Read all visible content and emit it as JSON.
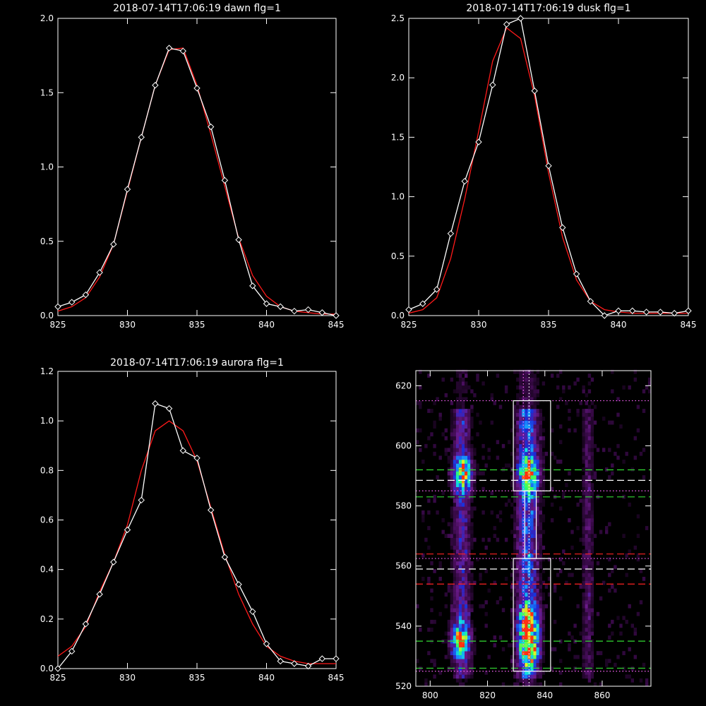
{
  "chart_data": [
    {
      "type": "line",
      "title": "2018-07-14T17:06:19 dawn flg=1",
      "xlim": [
        825,
        845
      ],
      "ylim": [
        0,
        2.0
      ],
      "xticks": [
        825,
        830,
        835,
        840,
        845
      ],
      "yticks": [
        0.0,
        0.5,
        1.0,
        1.5,
        2.0
      ],
      "ytick_labels": [
        "0.0",
        "0.5",
        "1.0",
        "1.5",
        "2.0"
      ],
      "series": [
        {
          "style": "data",
          "color": "#ffffff",
          "marker": "diamond",
          "x": [
            825,
            826,
            827,
            828,
            829,
            830,
            831,
            832,
            833,
            834,
            835,
            836,
            837,
            838,
            839,
            840,
            841,
            842,
            843,
            844,
            845
          ],
          "y": [
            0.06,
            0.09,
            0.14,
            0.29,
            0.48,
            0.85,
            1.2,
            1.55,
            1.8,
            1.78,
            1.53,
            1.27,
            0.91,
            0.51,
            0.2,
            0.08,
            0.06,
            0.03,
            0.04,
            0.02,
            0.0
          ]
        },
        {
          "style": "fit",
          "color": "#ff1a1a",
          "x": [
            825,
            826,
            827,
            828,
            829,
            830,
            831,
            832,
            833,
            834,
            835,
            836,
            837,
            838,
            839,
            840,
            841,
            842,
            843,
            844,
            845
          ],
          "y": [
            0.03,
            0.06,
            0.12,
            0.26,
            0.48,
            0.84,
            1.2,
            1.55,
            1.79,
            1.8,
            1.55,
            1.22,
            0.87,
            0.52,
            0.27,
            0.13,
            0.06,
            0.03,
            0.02,
            0.01,
            0.01
          ]
        }
      ]
    },
    {
      "type": "line",
      "title": "2018-07-14T17:06:19 dusk flg=1",
      "xlim": [
        825,
        845
      ],
      "ylim": [
        0,
        2.5
      ],
      "xticks": [
        825,
        830,
        835,
        840,
        845
      ],
      "yticks": [
        0.0,
        0.5,
        1.0,
        1.5,
        2.0,
        2.5
      ],
      "ytick_labels": [
        "0.0",
        "0.5",
        "1.0",
        "1.5",
        "2.0",
        "2.5"
      ],
      "series": [
        {
          "style": "data",
          "color": "#ffffff",
          "marker": "diamond",
          "x": [
            825,
            826,
            827,
            828,
            829,
            830,
            831,
            832,
            833,
            834,
            835,
            836,
            837,
            838,
            839,
            840,
            841,
            842,
            843,
            844,
            845
          ],
          "y": [
            0.05,
            0.1,
            0.22,
            0.69,
            1.13,
            1.46,
            1.94,
            2.45,
            2.5,
            1.89,
            1.26,
            0.74,
            0.35,
            0.12,
            0.0,
            0.04,
            0.04,
            0.03,
            0.03,
            0.02,
            0.04
          ]
        },
        {
          "style": "fit",
          "color": "#ff1a1a",
          "x": [
            825,
            826,
            827,
            828,
            829,
            830,
            831,
            832,
            833,
            834,
            835,
            836,
            837,
            838,
            839,
            840,
            841,
            842,
            843,
            844,
            845
          ],
          "y": [
            0.02,
            0.05,
            0.15,
            0.48,
            0.98,
            1.55,
            2.14,
            2.42,
            2.33,
            1.85,
            1.2,
            0.66,
            0.3,
            0.12,
            0.05,
            0.03,
            0.02,
            0.02,
            0.02,
            0.02,
            0.02
          ]
        }
      ]
    },
    {
      "type": "line",
      "title": "2018-07-14T17:06:19 aurora flg=1",
      "xlim": [
        825,
        845
      ],
      "ylim": [
        0,
        1.2
      ],
      "xticks": [
        825,
        830,
        835,
        840,
        845
      ],
      "yticks": [
        0.0,
        0.2,
        0.4,
        0.6,
        0.8,
        1.0,
        1.2
      ],
      "ytick_labels": [
        "0.0",
        "0.2",
        "0.4",
        "0.6",
        "0.8",
        "1.0",
        "1.2"
      ],
      "series": [
        {
          "style": "data",
          "color": "#ffffff",
          "marker": "diamond",
          "x": [
            825,
            826,
            827,
            828,
            829,
            830,
            831,
            832,
            833,
            834,
            835,
            836,
            837,
            838,
            839,
            840,
            841,
            842,
            843,
            844,
            845
          ],
          "y": [
            0.0,
            0.07,
            0.18,
            0.3,
            0.43,
            0.56,
            0.68,
            1.07,
            1.05,
            0.88,
            0.85,
            0.64,
            0.45,
            0.34,
            0.23,
            0.1,
            0.03,
            0.02,
            0.01,
            0.04,
            0.04
          ]
        },
        {
          "style": "fit",
          "color": "#ff1a1a",
          "x": [
            825,
            826,
            827,
            828,
            829,
            830,
            831,
            832,
            833,
            834,
            835,
            836,
            837,
            838,
            839,
            840,
            841,
            842,
            843,
            844,
            845
          ],
          "y": [
            0.05,
            0.09,
            0.17,
            0.31,
            0.43,
            0.58,
            0.8,
            0.96,
            1.0,
            0.96,
            0.84,
            0.65,
            0.46,
            0.3,
            0.18,
            0.09,
            0.05,
            0.03,
            0.02,
            0.02,
            0.02
          ]
        }
      ]
    },
    {
      "type": "heatmap",
      "title": "",
      "xlim": [
        795,
        877
      ],
      "ylim": [
        520,
        625
      ],
      "xticks": [
        800,
        820,
        840,
        860
      ],
      "yticks": [
        520,
        540,
        560,
        580,
        600,
        620
      ],
      "ytick_labels": [
        "520",
        "540",
        "560",
        "580",
        "600",
        "620"
      ],
      "colormap": [
        "#000000",
        "#3a0a4a",
        "#6a1a8a",
        "#1a2ad8",
        "#1a8aff",
        "#10e0e0",
        "#30ff60",
        "#f0f020",
        "#ff3010"
      ],
      "emission_columns": [
        {
          "x_center": 811,
          "width": 7
        },
        {
          "x_center": 834,
          "width": 9
        },
        {
          "x_center": 855,
          "width": 5
        }
      ],
      "hotspots": [
        {
          "x": 811,
          "y": 590,
          "level": 0.85
        },
        {
          "x": 810,
          "y": 535,
          "level": 0.85
        },
        {
          "x": 834,
          "y": 590,
          "level": 0.9
        },
        {
          "x": 834,
          "y": 541,
          "level": 1.0
        },
        {
          "x": 834,
          "y": 532,
          "level": 1.0
        }
      ],
      "boxes": [
        {
          "x": [
            829,
            842
          ],
          "y": [
            585,
            615
          ],
          "color": "#ffffff"
        },
        {
          "x": [
            829,
            842
          ],
          "y": [
            525,
            562.5
          ],
          "color": "#ffffff"
        },
        {
          "x": [
            833,
            837
          ],
          "y": [
            562.5,
            585
          ],
          "color": "#ffffff"
        }
      ],
      "hlines": [
        {
          "y": 615,
          "color": "#ff66ff",
          "style": "dotted"
        },
        {
          "y": 592,
          "color": "#33dd33",
          "style": "dashed"
        },
        {
          "y": 588.5,
          "color": "#ffffff",
          "style": "dashed"
        },
        {
          "y": 585,
          "color": "#ff66ff",
          "style": "dotted"
        },
        {
          "y": 583,
          "color": "#33dd33",
          "style": "dashed"
        },
        {
          "y": 564,
          "color": "#ff2222",
          "style": "dashed"
        },
        {
          "y": 562.5,
          "color": "#ff66ff",
          "style": "dotted"
        },
        {
          "y": 559,
          "color": "#ffffff",
          "style": "dashed"
        },
        {
          "y": 554,
          "color": "#ff2222",
          "style": "dashed"
        },
        {
          "y": 535,
          "color": "#33dd33",
          "style": "dashed"
        },
        {
          "y": 526,
          "color": "#33dd33",
          "style": "dashed"
        },
        {
          "y": 525,
          "color": "#ff66ff",
          "style": "dotted"
        }
      ],
      "vlines": [
        {
          "x": 832.5,
          "color": "#ff66ff",
          "style": "dotted"
        },
        {
          "x": 834.5,
          "color": "#ffffff",
          "style": "dotted"
        }
      ]
    }
  ]
}
